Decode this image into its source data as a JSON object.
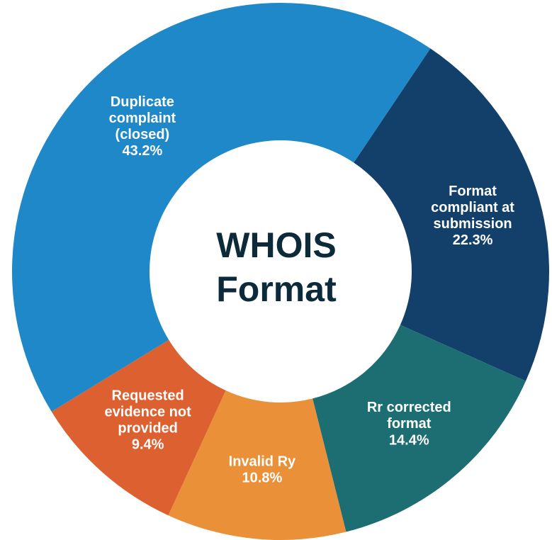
{
  "chart_data": {
    "type": "donut",
    "title": "WHOIS Format",
    "categories": [
      "Format compliant at submission",
      "Rr corrected format",
      "Invalid Ry",
      "Requested evidence not provided",
      "Duplicate complaint (closed)"
    ],
    "values": [
      22.3,
      14.4,
      10.8,
      9.4,
      43.2
    ],
    "value_labels": [
      "22.3%",
      "14.4%",
      "10.8%",
      "9.4%",
      "43.2%"
    ],
    "colors": [
      "#12406a",
      "#1d6e72",
      "#ea9038",
      "#dc6030",
      "#1f88c9"
    ]
  }
}
